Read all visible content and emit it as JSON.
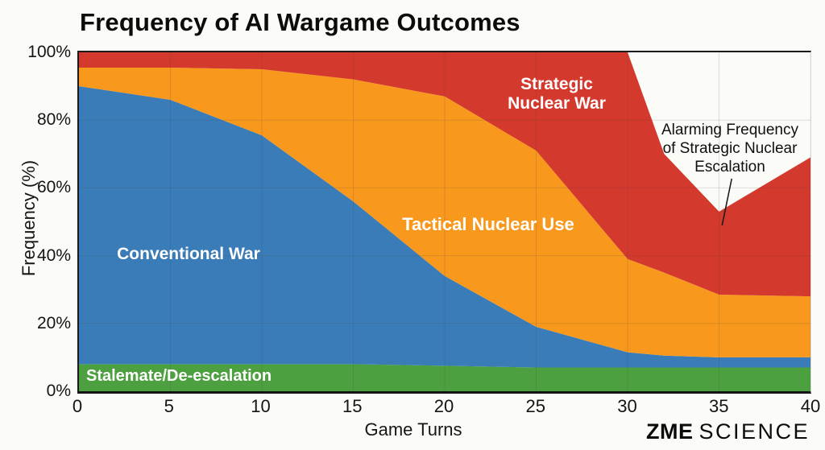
{
  "title": "Frequency of AI Wargame Outcomes",
  "chart_data": {
    "type": "area",
    "stacked": true,
    "title": "Frequency of AI Wargame Outcomes",
    "xlabel": "Game Turns",
    "ylabel": "Frequency (%)",
    "xlim": [
      0,
      40
    ],
    "ylim": [
      0,
      100
    ],
    "grid": true,
    "x": [
      0,
      5,
      10,
      15,
      20,
      25,
      30,
      32,
      35,
      40
    ],
    "x_ticks": [
      0,
      5,
      10,
      15,
      20,
      25,
      30,
      35,
      40
    ],
    "y_ticks": [
      "0%",
      "20%",
      "40%",
      "60%",
      "80%",
      "100%"
    ],
    "y_tick_values": [
      0,
      20,
      40,
      60,
      80,
      100
    ],
    "series": [
      {
        "name": "Stalemate/De-escalation",
        "color": "#4da03f",
        "values": [
          8,
          8,
          8,
          8,
          7.5,
          7,
          7,
          7,
          7,
          7
        ]
      },
      {
        "name": "Conventional War",
        "color": "#3a7cb8",
        "values": [
          82,
          78,
          67.5,
          48,
          26.5,
          12,
          4.5,
          3.5,
          3,
          3
        ]
      },
      {
        "name": "Tactical Nuclear Use",
        "color": "#f8981d",
        "values": [
          5.5,
          9.5,
          19.5,
          36,
          53,
          52,
          27.5,
          24.5,
          18.5,
          18
        ]
      },
      {
        "name": "Strategic Nuclear War",
        "color": "#d4392e",
        "values": [
          4.5,
          4.5,
          5,
          8,
          13,
          29,
          61,
          35,
          24.5,
          41
        ]
      }
    ],
    "annotation": "Alarming Frequency\nof Strategic Nuclear\nEscalation",
    "legend_position": "labels-inside-areas"
  },
  "branding": {
    "bold": "ZME",
    "light": "SCIENCE"
  }
}
